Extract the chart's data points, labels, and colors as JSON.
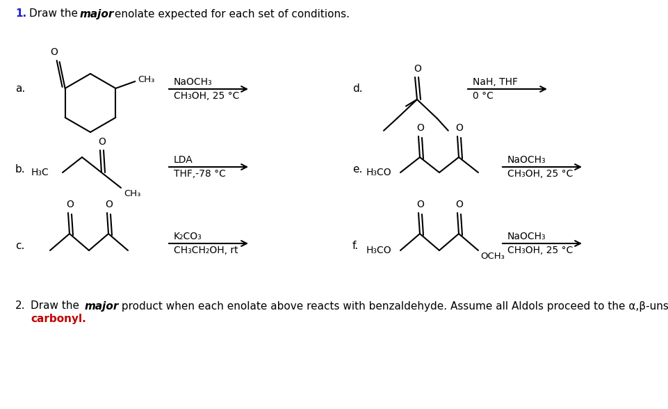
{
  "bg": "#ffffff",
  "blue": "#1f1fd4",
  "black": "#000000",
  "cond_a_r1": "NaOCH₃",
  "cond_a_r2": "CH₃OH, 25 °C",
  "cond_b_r1": "LDA",
  "cond_b_r2": "THF,-78 °C",
  "cond_c_r1": "K₂CO₃",
  "cond_c_r2": "CH₃CH₂OH, rt",
  "cond_d_r1": "NaH, THF",
  "cond_d_r2": "0 °C",
  "cond_e_r1": "NaOCH₃",
  "cond_e_r2": "CH₃OH, 25 °C",
  "cond_f_r1": "NaOCH₃",
  "cond_f_r2": "CH₃OH, 25 °C"
}
